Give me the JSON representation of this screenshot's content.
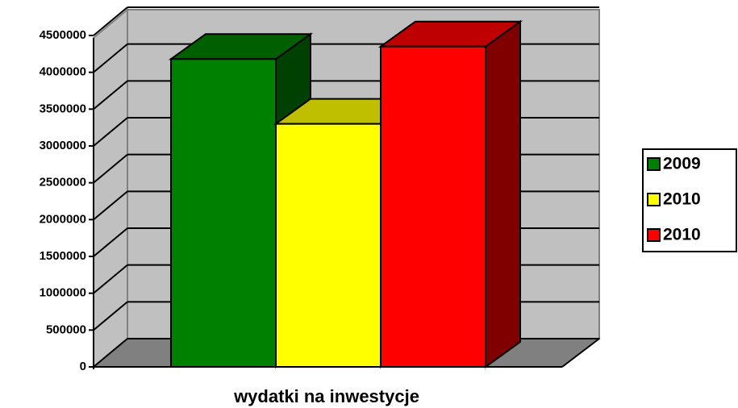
{
  "chart_data": {
    "type": "bar3d",
    "categories": [
      "wydatki na inwestycje"
    ],
    "series": [
      {
        "name": "2009",
        "color": "#008000",
        "values": [
          4180000
        ]
      },
      {
        "name": "2010",
        "color": "#ffff00",
        "values": [
          3300000
        ]
      },
      {
        "name": "2010",
        "color": "#ff0000",
        "values": [
          4350000
        ]
      }
    ],
    "ylim": [
      0,
      4500000
    ],
    "yticks": [
      0,
      500000,
      1000000,
      1500000,
      2000000,
      2500000,
      3000000,
      3500000,
      4000000,
      4500000
    ],
    "grid": true,
    "legend": "right"
  }
}
